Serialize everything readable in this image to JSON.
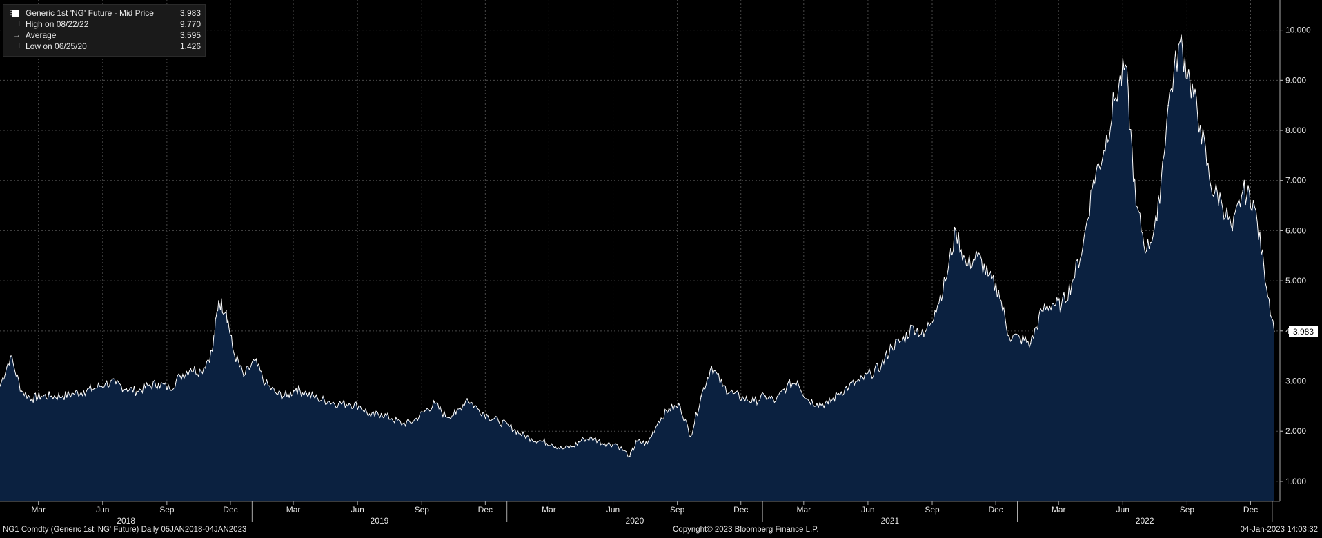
{
  "legend": {
    "title": "Generic 1st 'NG' Future - Mid Price",
    "last_value": "3.983",
    "rows": [
      {
        "label": "High on 08/22/22",
        "value": "9.770"
      },
      {
        "label": "Average",
        "value": "3.595"
      },
      {
        "label": "Low on 06/25/20",
        "value": "1.426"
      }
    ]
  },
  "last_badge": "3.983",
  "footer": {
    "left": "NG1 Comdty (Generic 1st 'NG' Future)  Daily 05JAN2018-04JAN2023",
    "center": "Copyright© 2023 Bloomberg Finance L.P.",
    "right": "04-Jan-2023 14:03:32"
  },
  "colors": {
    "background": "#000000",
    "area_fill": "#0b2140",
    "line": "#ffffff",
    "grid": "#4a4a4a"
  },
  "chart_data": {
    "type": "area",
    "title": "Generic 1st 'NG' Future - Mid Price",
    "xlabel": "",
    "ylabel": "",
    "ylim": [
      0.6,
      10.6
    ],
    "grid": true,
    "yaxis_side": "right",
    "yticks": [
      "1.000",
      "2.000",
      "3.000",
      "4.000",
      "5.000",
      "6.000",
      "7.000",
      "8.000",
      "9.000",
      "10.000"
    ],
    "month_ticks": [
      "Mar",
      "Jun",
      "Sep",
      "Dec",
      "Mar",
      "Jun",
      "Sep",
      "Dec",
      "Mar",
      "Jun",
      "Sep",
      "Dec",
      "Mar",
      "Jun",
      "Sep",
      "Dec",
      "Mar",
      "Jun",
      "Sep",
      "Dec"
    ],
    "year_labels": [
      "2018",
      "2019",
      "2020",
      "2021",
      "2022"
    ],
    "series": [
      {
        "name": "Generic 1st 'NG' Future - Mid Price",
        "x": [
          "2018-01-05",
          "2018-01-20",
          "2018-02-05",
          "2018-02-20",
          "2018-03-05",
          "2018-03-20",
          "2018-04-05",
          "2018-04-20",
          "2018-05-05",
          "2018-05-20",
          "2018-06-05",
          "2018-06-20",
          "2018-07-05",
          "2018-07-20",
          "2018-08-05",
          "2018-08-20",
          "2018-09-05",
          "2018-09-20",
          "2018-10-05",
          "2018-10-20",
          "2018-11-05",
          "2018-11-14",
          "2018-11-25",
          "2018-12-05",
          "2018-12-20",
          "2019-01-05",
          "2019-01-20",
          "2019-02-05",
          "2019-02-20",
          "2019-03-05",
          "2019-03-20",
          "2019-04-05",
          "2019-04-20",
          "2019-05-05",
          "2019-05-20",
          "2019-06-05",
          "2019-06-20",
          "2019-07-05",
          "2019-07-20",
          "2019-08-05",
          "2019-08-20",
          "2019-09-05",
          "2019-09-20",
          "2019-10-05",
          "2019-10-20",
          "2019-11-05",
          "2019-11-20",
          "2019-12-05",
          "2019-12-20",
          "2020-01-05",
          "2020-01-20",
          "2020-02-05",
          "2020-02-20",
          "2020-03-05",
          "2020-03-20",
          "2020-04-05",
          "2020-04-20",
          "2020-05-05",
          "2020-05-20",
          "2020-06-05",
          "2020-06-25",
          "2020-07-05",
          "2020-07-20",
          "2020-08-05",
          "2020-08-20",
          "2020-09-05",
          "2020-09-20",
          "2020-10-05",
          "2020-10-20",
          "2020-11-05",
          "2020-11-20",
          "2020-12-05",
          "2020-12-20",
          "2021-01-05",
          "2021-01-20",
          "2021-02-05",
          "2021-02-20",
          "2021-03-05",
          "2021-03-20",
          "2021-04-05",
          "2021-04-20",
          "2021-05-05",
          "2021-05-20",
          "2021-06-05",
          "2021-06-20",
          "2021-07-05",
          "2021-07-20",
          "2021-08-05",
          "2021-08-20",
          "2021-09-05",
          "2021-09-20",
          "2021-10-05",
          "2021-10-20",
          "2021-11-05",
          "2021-11-20",
          "2021-12-05",
          "2021-12-20",
          "2022-01-05",
          "2022-01-20",
          "2022-02-05",
          "2022-02-20",
          "2022-03-05",
          "2022-03-20",
          "2022-04-05",
          "2022-04-20",
          "2022-05-05",
          "2022-05-20",
          "2022-06-05",
          "2022-06-20",
          "2022-07-05",
          "2022-07-20",
          "2022-08-05",
          "2022-08-22",
          "2022-09-05",
          "2022-09-20",
          "2022-10-05",
          "2022-10-20",
          "2022-11-05",
          "2022-11-20",
          "2022-12-05",
          "2022-12-20",
          "2023-01-04"
        ],
        "values": [
          2.9,
          3.5,
          2.8,
          2.65,
          2.7,
          2.7,
          2.7,
          2.75,
          2.8,
          2.85,
          2.95,
          2.95,
          2.85,
          2.8,
          2.9,
          2.95,
          2.85,
          3.1,
          3.25,
          3.2,
          3.6,
          4.6,
          4.4,
          3.6,
          3.1,
          3.4,
          2.95,
          2.75,
          2.7,
          2.85,
          2.75,
          2.65,
          2.6,
          2.55,
          2.55,
          2.5,
          2.3,
          2.35,
          2.25,
          2.15,
          2.2,
          2.4,
          2.55,
          2.3,
          2.35,
          2.65,
          2.45,
          2.3,
          2.2,
          2.1,
          1.95,
          1.85,
          1.8,
          1.75,
          1.65,
          1.7,
          1.85,
          1.85,
          1.75,
          1.75,
          1.5,
          1.8,
          1.75,
          2.2,
          2.45,
          2.5,
          1.9,
          2.7,
          3.3,
          2.9,
          2.75,
          2.65,
          2.6,
          2.7,
          2.6,
          2.9,
          3.0,
          2.65,
          2.55,
          2.55,
          2.75,
          2.9,
          3.0,
          3.15,
          3.3,
          3.7,
          3.8,
          4.1,
          3.9,
          4.4,
          5.0,
          6.0,
          5.3,
          5.5,
          5.1,
          4.8,
          3.9,
          3.85,
          3.75,
          4.4,
          4.55,
          4.5,
          4.95,
          5.7,
          7.0,
          7.6,
          8.6,
          9.3,
          6.5,
          5.6,
          6.2,
          8.5,
          9.77,
          9.0,
          8.1,
          6.9,
          6.6,
          6.0,
          6.8,
          6.6,
          5.3,
          3.98
        ]
      }
    ],
    "annotations": [
      {
        "label": "High on 08/22/22",
        "value": 9.77
      },
      {
        "label": "Average",
        "value": 3.595
      },
      {
        "label": "Low on 06/25/20",
        "value": 1.426
      }
    ],
    "last_value": 3.983
  }
}
